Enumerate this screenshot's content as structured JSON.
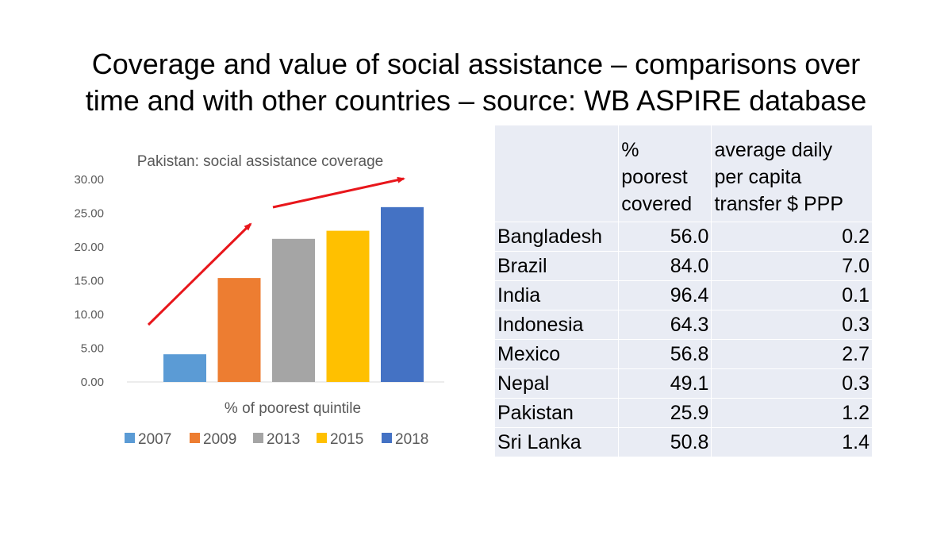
{
  "slide": {
    "title_line1": "Coverage and value of social assistance – comparisons over",
    "title_line2": "time and with other countries – source: WB ASPIRE database"
  },
  "chart_data": {
    "type": "bar",
    "title": "Pakistan: social assistance coverage",
    "xlabel": "% of poorest quintile",
    "ylabel": "",
    "ylim": [
      0,
      30
    ],
    "yticks": [
      "0.00",
      "5.00",
      "10.00",
      "15.00",
      "20.00",
      "25.00",
      "30.00"
    ],
    "grid": false,
    "legend_position": "bottom",
    "series": [
      {
        "name": "2007",
        "value": 4.1,
        "color": "#5b9bd5"
      },
      {
        "name": "2009",
        "value": 15.4,
        "color": "#ed7d31"
      },
      {
        "name": "2013",
        "value": 21.2,
        "color": "#a5a5a5"
      },
      {
        "name": "2015",
        "value": 22.4,
        "color": "#ffc000"
      },
      {
        "name": "2018",
        "value": 25.9,
        "color": "#4472c4"
      }
    ],
    "annotations": [
      {
        "type": "arrow",
        "color": "#e8161b",
        "description": "upward trend arrow"
      },
      {
        "type": "arrow",
        "color": "#e8161b",
        "description": "upward trend arrow"
      }
    ]
  },
  "table": {
    "headers": [
      "",
      "% poorest covered",
      "average daily per capita transfer $ PPP"
    ],
    "header_lines": [
      [],
      [
        "%",
        "poorest",
        "covered"
      ],
      [
        "average daily",
        "per capita",
        "transfer $ PPP"
      ]
    ],
    "rows": [
      {
        "country": "Bangladesh",
        "covered": "56.0",
        "transfer": "0.2"
      },
      {
        "country": "Brazil",
        "covered": "84.0",
        "transfer": "7.0"
      },
      {
        "country": "India",
        "covered": "96.4",
        "transfer": "0.1"
      },
      {
        "country": "Indonesia",
        "covered": "64.3",
        "transfer": "0.3"
      },
      {
        "country": "Mexico",
        "covered": "56.8",
        "transfer": "2.7"
      },
      {
        "country": "Nepal",
        "covered": "49.1",
        "transfer": "0.3"
      },
      {
        "country": "Pakistan",
        "covered": "25.9",
        "transfer": "1.2"
      },
      {
        "country": "Sri Lanka",
        "covered": "50.8",
        "transfer": "1.4"
      }
    ]
  }
}
